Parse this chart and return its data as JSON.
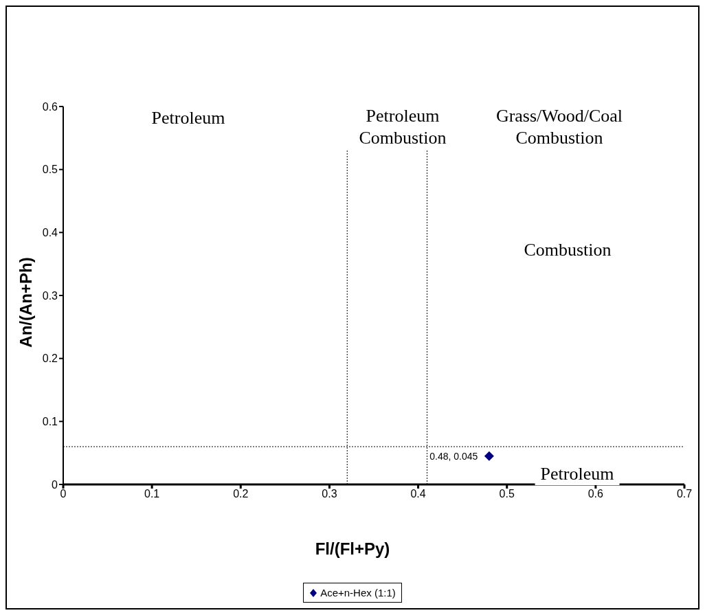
{
  "chart_data": {
    "type": "scatter",
    "xlabel": "Fl/(Fl+Py)",
    "ylabel": "An/(An+Ph)",
    "x": [
      0.48
    ],
    "series": [
      {
        "name": "Ace+n-Hex (1:1)",
        "color": "#000080",
        "values": [
          0.045
        ],
        "value_labels": [
          "0.48, 0.045"
        ]
      }
    ],
    "xlim": [
      0,
      0.7
    ],
    "xticks": [
      0,
      0.1,
      0.2,
      0.3,
      0.4,
      0.5,
      0.6,
      0.7
    ],
    "ylim": [
      0,
      0.6
    ],
    "yticks": [
      0,
      0.1,
      0.2,
      0.3,
      0.4,
      0.5,
      0.6
    ],
    "grid": false,
    "legend": "bottom",
    "marker": "diamond",
    "ref_lines": [
      {
        "axis": "x",
        "value": 0.32,
        "line_style": "dotted",
        "color": "#000000"
      },
      {
        "axis": "x",
        "value": 0.41,
        "line_style": "dotted",
        "color": "#000000"
      },
      {
        "axis": "y",
        "value": 0.06,
        "line_style": "dotted",
        "color": "#000000"
      }
    ],
    "annotations": [
      "Petroleum",
      "Petroleum Combustion",
      "Grass/Wood/Coal Combustion",
      "Combustion",
      "Petroleum"
    ]
  }
}
